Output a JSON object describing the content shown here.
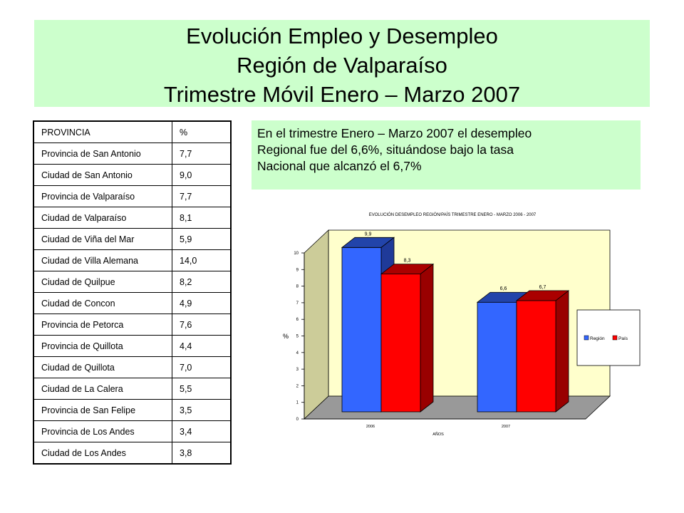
{
  "title": {
    "line1": "Evolución Empleo y Desempleo",
    "line2": "Región de Valparaíso",
    "line3": "Trimestre Móvil Enero – Marzo 2007"
  },
  "table": {
    "headers": [
      "PROVINCIA",
      "%"
    ],
    "rows": [
      [
        "Provincia de San Antonio",
        "7,7"
      ],
      [
        "Ciudad de San Antonio",
        "9,0"
      ],
      [
        "Provincia de Valparaíso",
        "7,7"
      ],
      [
        "Ciudad de Valparaíso",
        "8,1"
      ],
      [
        "Ciudad de Viña del Mar",
        "5,9"
      ],
      [
        "Ciudad de Villa Alemana",
        "14,0"
      ],
      [
        "Ciudad de Quilpue",
        "8,2"
      ],
      [
        "Ciudad de Concon",
        "4,9"
      ],
      [
        "Provincia de Petorca",
        "7,6"
      ],
      [
        "Provincia de Quillota",
        "4,4"
      ],
      [
        "Ciudad de Quillota",
        "7,0"
      ],
      [
        "Ciudad de La Calera",
        "5,5"
      ],
      [
        "Provincia de San Felipe",
        "3,5"
      ],
      [
        "Provincia de Los Andes",
        "3,4"
      ],
      [
        "Ciudad de Los Andes",
        "3,8"
      ]
    ]
  },
  "note": {
    "line1": "En el trimestre Enero – Marzo 2007 el desempleo",
    "line2": "Regional fue del 6,6%, situándose bajo la tasa",
    "line3": "Nacional que alcanzó el 6,7%"
  },
  "chart_data": {
    "type": "bar",
    "title": "EVOLUCIÓN DESEMPLEO REGIÓN/PAÍS TRIMESTRE ENERO - MARZO 2006 - 2007",
    "xlabel": "AÑOS",
    "ylabel": "%",
    "categories": [
      "2006",
      "2007"
    ],
    "series": [
      {
        "name": "Región",
        "values": [
          9.9,
          6.6
        ],
        "labels": [
          "9,9",
          "6,6"
        ],
        "color": "#3366ff"
      },
      {
        "name": "País",
        "values": [
          8.3,
          6.7
        ],
        "labels": [
          "8,3",
          "6,7"
        ],
        "color": "#ff0000"
      }
    ],
    "ylim": [
      0,
      10
    ],
    "yticks": [
      0,
      1,
      2,
      3,
      4,
      5,
      6,
      7,
      8,
      9,
      10
    ],
    "grid": false,
    "legend": "right",
    "three_d": true,
    "plot_background": "#ffffcc"
  }
}
